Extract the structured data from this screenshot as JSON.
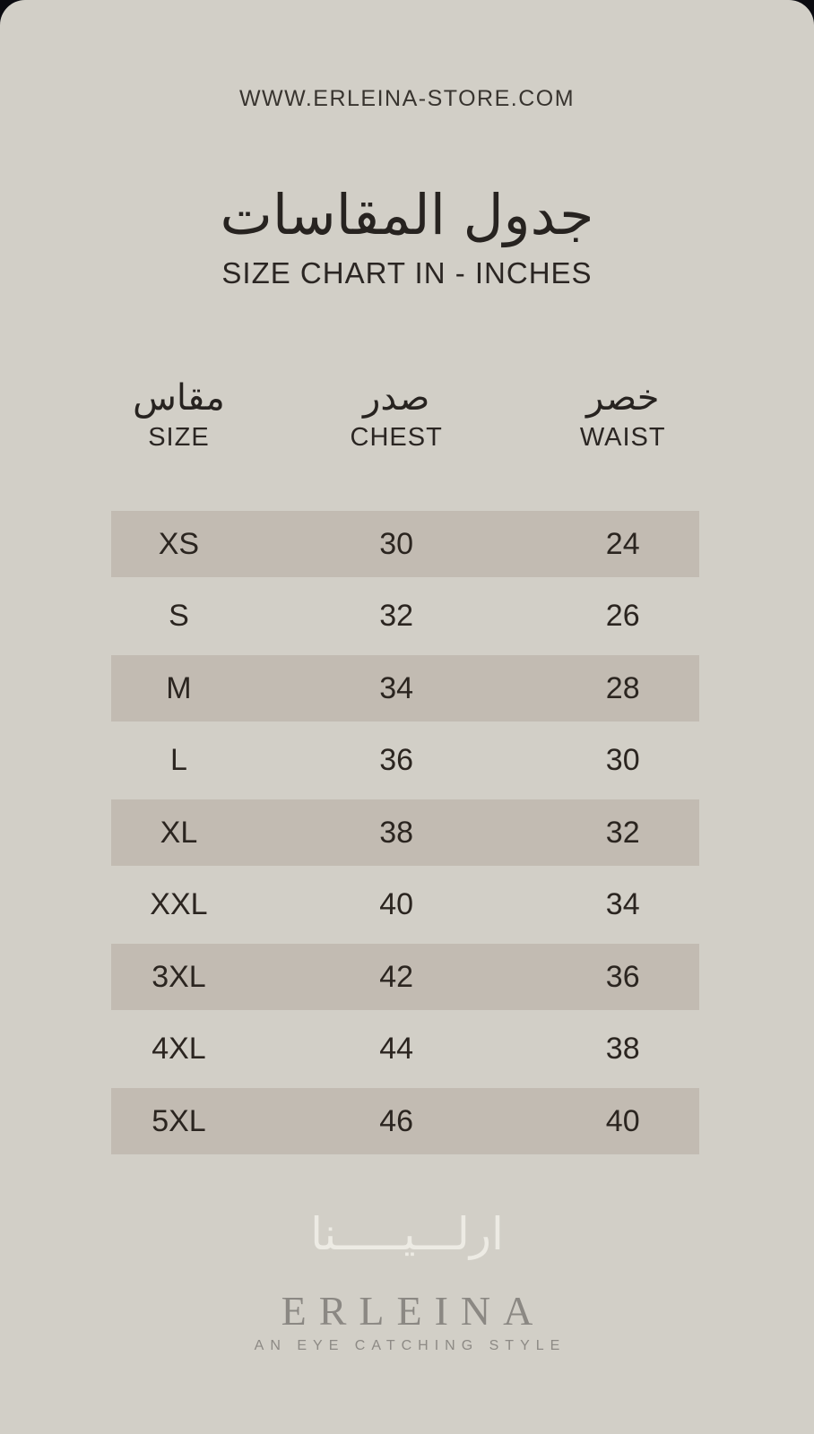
{
  "page": {
    "background_color": "#d2cfc7",
    "outer_corner_color": "#0b0b10",
    "shaded_row_color": "#c2bbb2",
    "text_color": "#2b2623",
    "brand_gray_color": "#8b8883",
    "arabic_logo_color": "#edebe4"
  },
  "header": {
    "website": "WWW.ERLEINA-STORE.COM"
  },
  "title": {
    "ar": "جدول المقاسات",
    "en": "SIZE CHART IN - INCHES"
  },
  "chart_data": {
    "type": "table",
    "title": "SIZE CHART IN - INCHES",
    "title_ar": "جدول المقاسات",
    "units": "inches",
    "columns": [
      {
        "ar": "مقاس",
        "en": "SIZE"
      },
      {
        "ar": "صدر",
        "en": "CHEST"
      },
      {
        "ar": "خصر",
        "en": "WAIST"
      }
    ],
    "rows": [
      [
        "XS",
        "30",
        "24"
      ],
      [
        "S",
        "32",
        "26"
      ],
      [
        "M",
        "34",
        "28"
      ],
      [
        "L",
        "36",
        "30"
      ],
      [
        "XL",
        "38",
        "32"
      ],
      [
        "XXL",
        "40",
        "34"
      ],
      [
        "3XL",
        "42",
        "36"
      ],
      [
        "4XL",
        "44",
        "38"
      ],
      [
        "5XL",
        "46",
        "40"
      ]
    ],
    "shaded_row_indices": [
      0,
      2,
      4,
      6,
      8
    ],
    "layout": {
      "striped": true,
      "grid_lines": false
    }
  },
  "footer": {
    "logo_ar": "ارلـــيـــــنا",
    "brand": "ERLEINA",
    "tagline": "AN EYE CATCHING STYLE"
  }
}
